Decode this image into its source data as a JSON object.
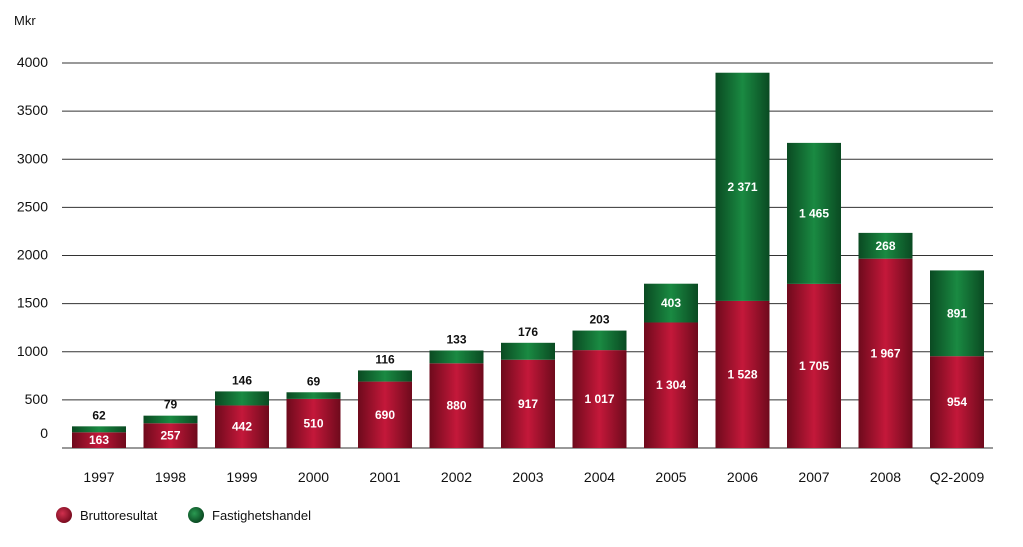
{
  "chart_data": {
    "type": "bar",
    "stacked": true,
    "ylabel": "Mkr",
    "ylim": [
      0,
      4000
    ],
    "yticks": [
      0,
      500,
      1000,
      1500,
      2000,
      2500,
      3000,
      3500,
      4000
    ],
    "grid": true,
    "legend_placement": "bottom-left",
    "categories": [
      "1997",
      "1998",
      "1999",
      "2000",
      "2001",
      "2002",
      "2003",
      "2004",
      "2005",
      "2006",
      "2007",
      "2008",
      "Q2-2009"
    ],
    "series": [
      {
        "name": "Bruttoresultat",
        "color": "#a3102a",
        "values": [
          163,
          257,
          442,
          510,
          690,
          880,
          917,
          1017,
          1304,
          1528,
          1705,
          1967,
          954
        ],
        "labels": [
          "163",
          "257",
          "442",
          "510",
          "690",
          "880",
          "917",
          "1 017",
          "1 304",
          "1 528",
          "1 705",
          "1 967",
          "954"
        ]
      },
      {
        "name": "Fastighetshandel",
        "color": "#0f6a30",
        "values": [
          62,
          79,
          146,
          69,
          116,
          133,
          176,
          203,
          403,
          2371,
          1465,
          268,
          891
        ],
        "labels": [
          "62",
          "79",
          "146",
          "69",
          "116",
          "133",
          "176",
          "203",
          "403",
          "2 371",
          "1 465",
          "268",
          "891"
        ]
      }
    ]
  }
}
